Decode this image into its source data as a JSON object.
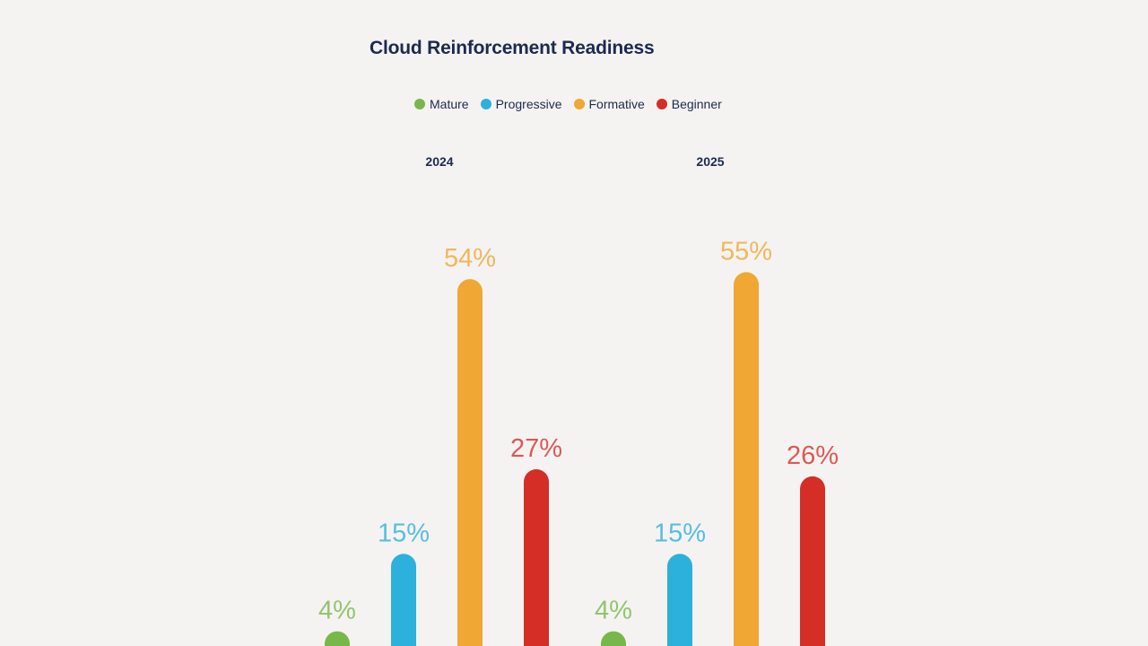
{
  "chart_data": {
    "type": "bar",
    "title": "Cloud Reinforcement Readiness",
    "categories": [
      "2024",
      "2025"
    ],
    "series": [
      {
        "name": "Mature",
        "color": "#78b84a",
        "values": [
          4,
          4
        ],
        "labels": [
          "4%",
          "4%"
        ]
      },
      {
        "name": "Progressive",
        "color": "#2cb0dc",
        "values": [
          15,
          15
        ],
        "labels": [
          "15%",
          "15%"
        ]
      },
      {
        "name": "Formative",
        "color": "#f0a733",
        "values": [
          54,
          55
        ],
        "labels": [
          "54%",
          "55%"
        ]
      },
      {
        "name": "Beginner",
        "color": "#d42e27",
        "values": [
          27,
          26
        ],
        "labels": [
          "27%",
          "26%"
        ]
      }
    ],
    "legend": "top",
    "grid": false,
    "ylim": [
      0,
      60
    ]
  }
}
